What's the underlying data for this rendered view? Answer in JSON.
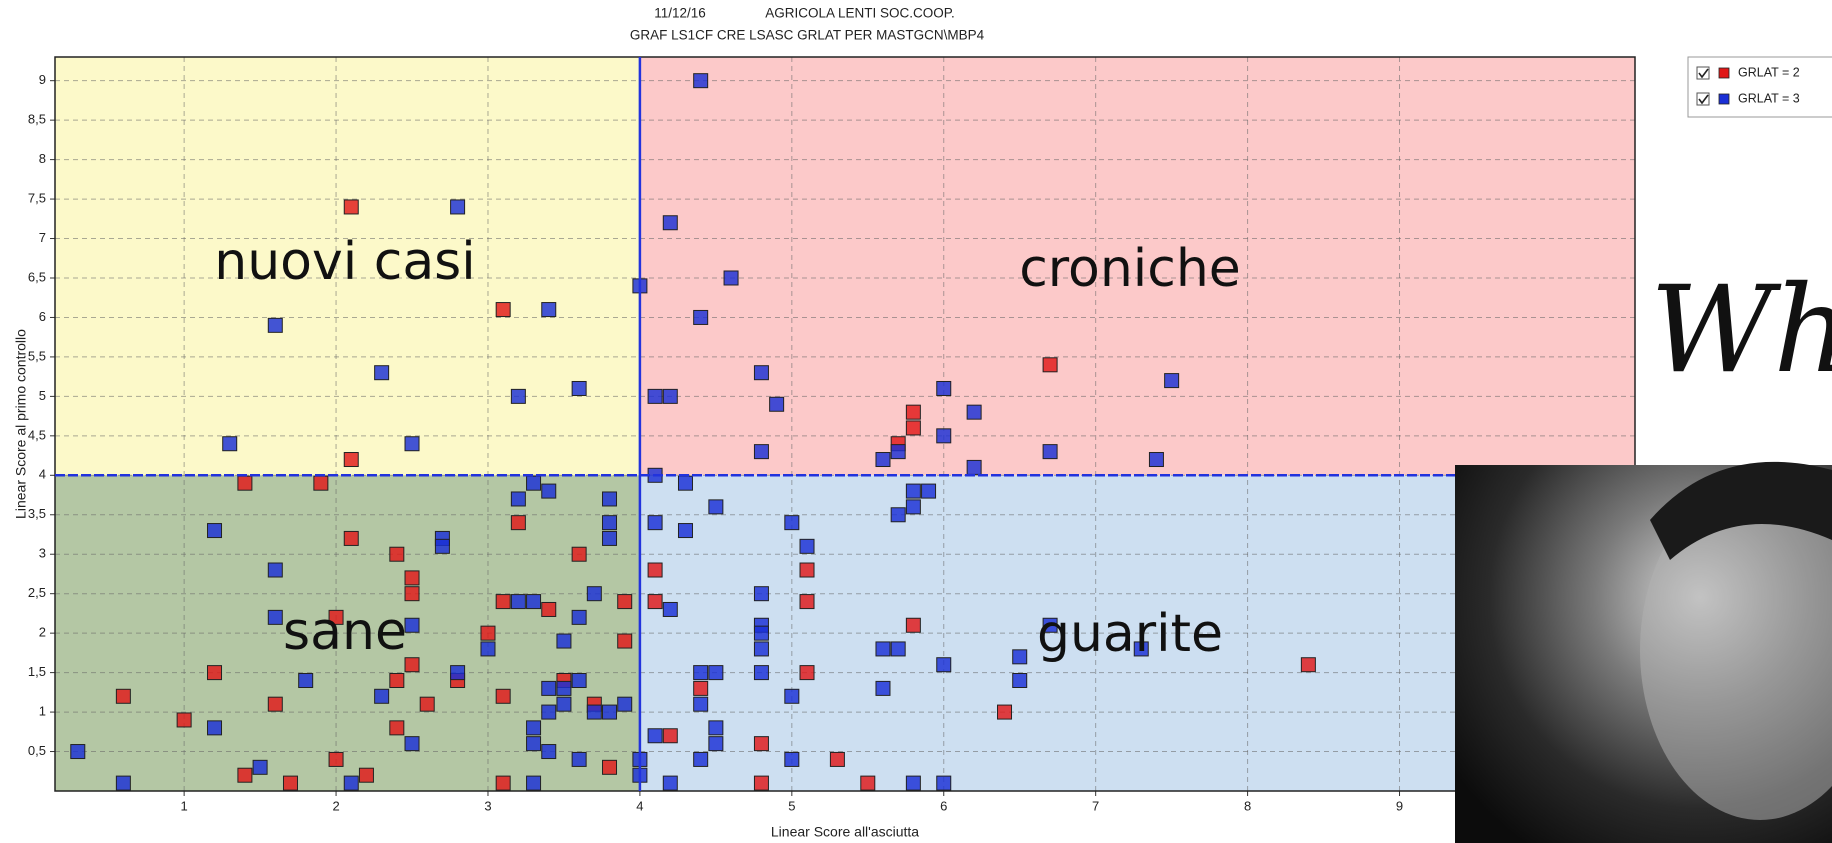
{
  "chart_data": {
    "type": "scatter",
    "title": "11/12/16",
    "company": "AGRICOLA LENTI SOC.COOP.",
    "subtitle": "GRAF LS1CF CRE LSASC GRLAT PER MASTGCN\\MBP4",
    "x_label": "Linear Score all'asciutta",
    "y_label": "Linear Score al primo controllo",
    "xlim": [
      0.15,
      10.55
    ],
    "ylim": [
      0,
      9.3
    ],
    "xticks": [
      1,
      2,
      3,
      4,
      5,
      6,
      7,
      8,
      9
    ],
    "yticks": [
      {
        "value": 0.5,
        "label": "0,5"
      },
      1,
      {
        "value": 1.5,
        "label": "1,5"
      },
      2,
      {
        "value": 2.5,
        "label": "2,5"
      },
      3,
      {
        "value": 3.5,
        "label": "3,5"
      },
      4,
      {
        "value": 4.5,
        "label": "4,5"
      },
      5,
      {
        "value": 5.5,
        "label": "5,5"
      },
      6,
      {
        "value": 6.5,
        "label": "6,5"
      },
      7,
      {
        "value": 7.5,
        "label": "7,5"
      },
      8,
      {
        "value": 8.5,
        "label": "8,5"
      },
      9
    ],
    "grid": true,
    "thresholds": {
      "x": 4,
      "y": 4
    },
    "quadrants": {
      "top_left": "nuovi casi",
      "top_right": "croniche",
      "bottom_left": "sane",
      "bottom_right": "guarite"
    },
    "legend_position": "right",
    "overlay_text": "Wh",
    "series": [
      {
        "name": "GRLAT = 2",
        "color": "#e01818",
        "x": [
          2.1,
          3.1,
          2.1,
          6.7,
          5.8,
          5.8,
          5.7,
          1.4,
          1.9,
          3.2,
          2.1,
          2.4,
          3.6,
          2.5,
          2.5,
          3.1,
          3.9,
          2.0,
          3.0,
          3.9,
          2.5,
          1.2,
          2.8,
          2.4,
          3.5,
          0.6,
          3.1,
          1.6,
          2.6,
          3.7,
          1.0,
          2.4,
          2.0,
          3.8,
          1.4,
          2.2,
          1.7,
          3.1,
          3.4,
          4.1,
          4.1,
          5.1,
          5.1,
          5.8,
          5.1,
          4.4,
          4.2,
          4.8,
          5.3,
          6.4,
          8.4,
          4.8,
          5.5
        ],
        "values": [
          7.4,
          6.1,
          4.2,
          5.4,
          4.8,
          4.6,
          4.4,
          3.9,
          3.9,
          3.4,
          3.2,
          3.0,
          3.0,
          2.7,
          2.5,
          2.4,
          2.4,
          2.2,
          2.0,
          1.9,
          1.6,
          1.5,
          1.4,
          1.4,
          1.4,
          1.2,
          1.2,
          1.1,
          1.1,
          1.1,
          0.9,
          0.8,
          0.4,
          0.3,
          0.2,
          0.2,
          0.1,
          0.1,
          2.3,
          2.8,
          2.4,
          2.8,
          2.4,
          2.1,
          1.5,
          1.3,
          0.7,
          0.6,
          0.4,
          1.0,
          1.6,
          0.1,
          0.1
        ]
      },
      {
        "name": "GRLAT = 3",
        "color": "#1a2fd6",
        "x": [
          2.8,
          1.6,
          3.4,
          2.3,
          3.2,
          3.6,
          1.3,
          2.5,
          4.4,
          4.2,
          4.6,
          4.0,
          4.4,
          4.8,
          4.1,
          4.2,
          4.9,
          6.0,
          6.2,
          7.5,
          4.8,
          6.0,
          6.7,
          5.6,
          5.7,
          7.4,
          6.2,
          4.1,
          3.3,
          3.2,
          3.4,
          3.8,
          3.8,
          3.8,
          1.2,
          2.7,
          2.7,
          1.6,
          3.7,
          3.2,
          3.3,
          3.6,
          1.6,
          2.5,
          3.0,
          3.5,
          2.8,
          1.8,
          3.6,
          3.4,
          3.5,
          2.3,
          3.5,
          3.9,
          3.4,
          3.7,
          3.8,
          1.2,
          3.3,
          3.3,
          2.5,
          3.4,
          0.3,
          3.6,
          1.5,
          0.6,
          2.1,
          3.3,
          4.0,
          4.0,
          4.3,
          4.1,
          4.3,
          4.5,
          5.0,
          5.1,
          5.7,
          5.8,
          5.8,
          5.9,
          4.2,
          4.8,
          4.8,
          4.8,
          4.8,
          6.7,
          5.6,
          5.7,
          4.4,
          4.5,
          4.8,
          6.0,
          6.5,
          7.3,
          6.5,
          5.6,
          5.0,
          4.4,
          4.5,
          4.1,
          4.5,
          4.4,
          5.0,
          4.2,
          5.8,
          6.0
        ],
        "values": [
          7.4,
          5.9,
          6.1,
          5.3,
          5.0,
          5.1,
          4.4,
          4.4,
          9.0,
          7.2,
          6.5,
          6.4,
          6.0,
          5.3,
          5.0,
          5.0,
          4.9,
          5.1,
          4.8,
          5.2,
          4.3,
          4.5,
          4.3,
          4.2,
          4.3,
          4.2,
          4.1,
          4.0,
          3.9,
          3.7,
          3.8,
          3.7,
          3.4,
          3.2,
          3.3,
          3.2,
          3.1,
          2.8,
          2.5,
          2.4,
          2.4,
          2.2,
          2.2,
          2.1,
          1.8,
          1.9,
          1.5,
          1.4,
          1.4,
          1.3,
          1.3,
          1.2,
          1.1,
          1.1,
          1.0,
          1.0,
          1.0,
          0.8,
          0.8,
          0.6,
          0.6,
          0.5,
          0.5,
          0.4,
          0.3,
          0.1,
          0.1,
          0.1,
          0.4,
          0.2,
          3.9,
          3.4,
          3.3,
          3.6,
          3.4,
          3.1,
          3.5,
          3.6,
          3.8,
          3.8,
          2.3,
          2.5,
          2.1,
          2.0,
          1.8,
          2.1,
          1.8,
          1.8,
          1.5,
          1.5,
          1.5,
          1.6,
          1.7,
          1.8,
          1.4,
          1.3,
          1.2,
          1.1,
          0.8,
          0.7,
          0.6,
          0.4,
          0.4,
          0.1,
          0.1,
          0.1
        ]
      }
    ]
  }
}
